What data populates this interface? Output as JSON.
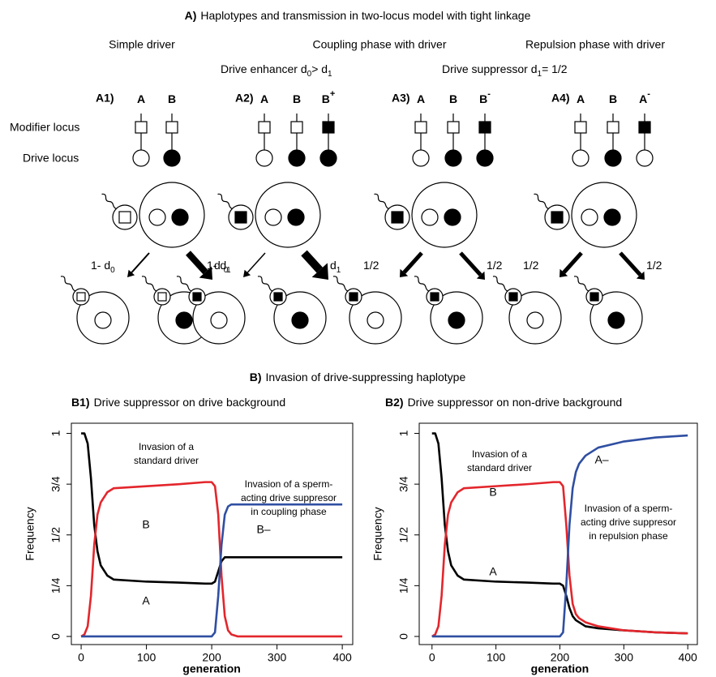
{
  "panel_a": {
    "label": "A)",
    "title": "Haplotypes and transmission in two-locus model with tight linkage",
    "headers": [
      "Simple driver",
      "Coupling phase with driver",
      "Repulsion phase with driver"
    ],
    "subheaders": [
      [
        "Drive enhancer d",
        "0",
        "> d",
        "1"
      ],
      [
        "Drive suppressor d",
        "1",
        "= 1/2"
      ]
    ],
    "row_labels": [
      "Modifier locus",
      "Drive locus"
    ],
    "panels": [
      {
        "label": "A1)",
        "haplotypes": [
          {
            "name": "A"
          },
          {
            "name": "B"
          }
        ],
        "transmission": [
          [
            "1- d",
            "0"
          ],
          [
            "d ",
            "0"
          ]
        ]
      },
      {
        "label": "A2)",
        "haplotypes": [
          {
            "name": "A"
          },
          {
            "name": "B"
          },
          {
            "name": "B",
            "sup": "+"
          }
        ],
        "transmission": [
          [
            "1- d",
            "1"
          ],
          [
            "d",
            "1"
          ]
        ]
      },
      {
        "label": "A3)",
        "haplotypes": [
          {
            "name": "A"
          },
          {
            "name": "B"
          },
          {
            "name": "B",
            "sup": "-"
          }
        ],
        "transmission": [
          [
            "1/2"
          ],
          [
            "1/2"
          ]
        ]
      },
      {
        "label": "A4)",
        "haplotypes": [
          {
            "name": "A"
          },
          {
            "name": "B"
          },
          {
            "name": "A",
            "sup": "-"
          }
        ],
        "transmission": [
          [
            "1/2"
          ],
          [
            "1/2"
          ]
        ]
      }
    ]
  },
  "panel_b": {
    "label": "B)",
    "title": "Invasion of drive-suppressing haplotype"
  },
  "chart_data": [
    {
      "type": "line",
      "label": "B1)",
      "title": "Drive suppressor on drive background",
      "ylabel": "Frequency",
      "xlabel": "generation",
      "xlim": [
        -15,
        416
      ],
      "ylim": [
        -0.04,
        1.05
      ],
      "xticks": [
        0,
        100,
        200,
        300,
        400
      ],
      "yticks": [
        0,
        {
          "value": 0.25,
          "label": "1/4"
        },
        {
          "value": 0.5,
          "label": "1/2"
        },
        {
          "value": 0.75,
          "label": "3/4"
        },
        1
      ],
      "x": [
        0,
        5,
        10,
        15,
        20,
        25,
        30,
        40,
        50,
        100,
        150,
        190,
        200,
        205,
        210,
        215,
        220,
        225,
        230,
        240,
        260,
        300,
        350,
        400
      ],
      "series": [
        {
          "name": "A",
          "color": "#000000",
          "values": [
            1,
            1,
            0.95,
            0.78,
            0.55,
            0.42,
            0.35,
            0.3,
            0.28,
            0.27,
            0.265,
            0.26,
            0.26,
            0.27,
            0.32,
            0.37,
            0.39,
            0.39,
            0.39,
            0.39,
            0.39,
            0.39,
            0.39,
            0.39
          ]
        },
        {
          "name": "B",
          "color": "#e3262c",
          "values": [
            0,
            0.01,
            0.05,
            0.2,
            0.45,
            0.6,
            0.66,
            0.71,
            0.73,
            0.74,
            0.75,
            0.76,
            0.76,
            0.74,
            0.6,
            0.3,
            0.1,
            0.03,
            0.01,
            0,
            0,
            0,
            0,
            0
          ]
        },
        {
          "name": "B–",
          "color": "#2f4fa2",
          "values": [
            0,
            0,
            0,
            0,
            0,
            0,
            0,
            0,
            0,
            0,
            0,
            0,
            0,
            0.02,
            0.2,
            0.45,
            0.6,
            0.64,
            0.65,
            0.65,
            0.65,
            0.65,
            0.65,
            0.65
          ]
        }
      ],
      "annotations": [
        [
          "Invasion of a",
          "standard driver"
        ],
        [
          "Invasion of a sperm-",
          "acting drive suppresor",
          "in coupling phase"
        ]
      ]
    },
    {
      "type": "line",
      "label": "B2)",
      "title": "Drive suppressor on non-drive background",
      "ylabel": "Frequency",
      "xlabel": "generation",
      "xlim": [
        -20,
        415
      ],
      "ylim": [
        -0.04,
        1.05
      ],
      "xticks": [
        0,
        100,
        200,
        300,
        400
      ],
      "yticks": [
        0,
        {
          "value": 0.25,
          "label": "1/4"
        },
        {
          "value": 0.5,
          "label": "1/2"
        },
        {
          "value": 0.75,
          "label": "3/4"
        },
        1
      ],
      "x": [
        0,
        5,
        10,
        15,
        20,
        25,
        30,
        40,
        50,
        100,
        150,
        190,
        200,
        205,
        210,
        215,
        220,
        225,
        230,
        240,
        260,
        300,
        350,
        400
      ],
      "series": [
        {
          "name": "A",
          "color": "#000000",
          "values": [
            1,
            1,
            0.95,
            0.78,
            0.55,
            0.42,
            0.35,
            0.3,
            0.28,
            0.27,
            0.265,
            0.26,
            0.26,
            0.25,
            0.2,
            0.14,
            0.1,
            0.08,
            0.07,
            0.05,
            0.04,
            0.03,
            0.02,
            0.015
          ]
        },
        {
          "name": "B",
          "color": "#e3262c",
          "values": [
            0,
            0.01,
            0.05,
            0.2,
            0.45,
            0.6,
            0.66,
            0.71,
            0.73,
            0.74,
            0.75,
            0.76,
            0.76,
            0.74,
            0.55,
            0.3,
            0.16,
            0.11,
            0.09,
            0.07,
            0.05,
            0.03,
            0.02,
            0.015
          ]
        },
        {
          "name": "A–",
          "color": "#2f4fa2",
          "values": [
            0,
            0,
            0,
            0,
            0,
            0,
            0,
            0,
            0,
            0,
            0,
            0,
            0,
            0.02,
            0.25,
            0.55,
            0.73,
            0.81,
            0.85,
            0.89,
            0.93,
            0.96,
            0.98,
            0.99
          ]
        }
      ],
      "annotations": [
        [
          "Invasion of a",
          "standard driver"
        ],
        [
          "Invasion of a sperm-",
          "acting drive suppresor",
          "in repulsion phase"
        ]
      ]
    }
  ]
}
